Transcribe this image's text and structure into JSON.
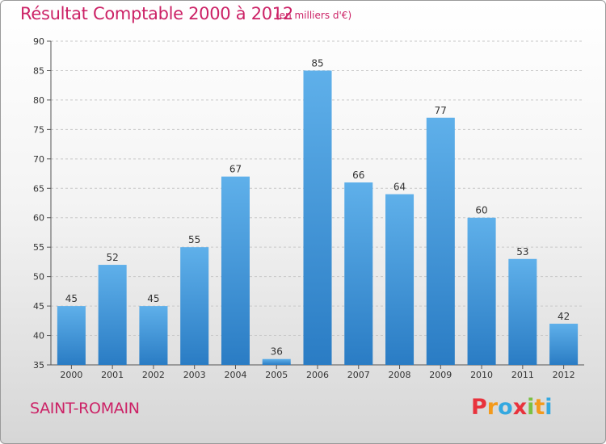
{
  "header": {
    "title": "Résultat Comptable 2000 à 2012",
    "subtitle": "(en milliers d'€)"
  },
  "footer": {
    "town": "SAINT-ROMAIN",
    "logo_letters": [
      "P",
      "r",
      "o",
      "x",
      "i",
      "t",
      "i"
    ],
    "logo_colors": [
      "#e8323c",
      "#f39a1c",
      "#34a8e0",
      "#e8323c",
      "#7bc043",
      "#f39a1c",
      "#34a8e0"
    ]
  },
  "chart_data": {
    "type": "bar",
    "title": "Résultat Comptable 2000 à 2012",
    "subtitle": "(en milliers d'€)",
    "xlabel": "",
    "ylabel": "",
    "categories": [
      "2000",
      "2001",
      "2002",
      "2003",
      "2004",
      "2005",
      "2006",
      "2007",
      "2008",
      "2009",
      "2010",
      "2011",
      "2012"
    ],
    "values": [
      45,
      52,
      45,
      55,
      67,
      36,
      85,
      66,
      64,
      77,
      60,
      53,
      42
    ],
    "ylim": [
      35,
      90
    ],
    "yticks": [
      35,
      40,
      45,
      50,
      55,
      60,
      65,
      70,
      75,
      80,
      85,
      90
    ],
    "grid": true,
    "bar_color": "#3a8fd6"
  }
}
